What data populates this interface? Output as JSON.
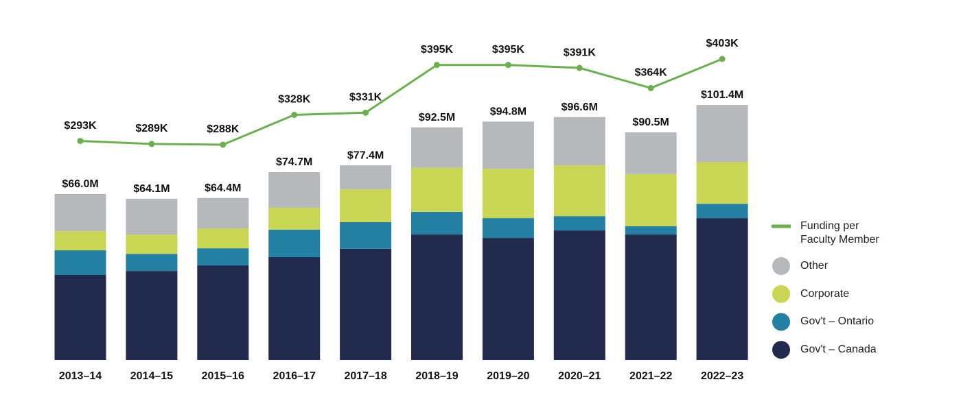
{
  "chart_data": {
    "type": "bar",
    "categories": [
      "2013–14",
      "2014–15",
      "2015–16",
      "2016–17",
      "2017–18",
      "2018–19",
      "2019–20",
      "2020–21",
      "2021–22",
      "2022–23"
    ],
    "series": [
      {
        "name": "Gov't – Canada",
        "color": "#222a4e",
        "values": [
          33.8,
          35.4,
          37.6,
          40.9,
          44.2,
          49.9,
          48.5,
          51.5,
          49.9,
          56.4
        ]
      },
      {
        "name": "Gov't – Ontario",
        "color": "#2480a3",
        "values": [
          9.8,
          6.8,
          6.8,
          10.9,
          10.6,
          9.0,
          7.9,
          5.7,
          3.3,
          5.7
        ]
      },
      {
        "name": "Corporate",
        "color": "#c9d653",
        "values": [
          7.6,
          7.6,
          7.9,
          8.7,
          13.1,
          17.5,
          19.6,
          20.2,
          20.7,
          16.6
        ]
      },
      {
        "name": "Other",
        "color": "#b6b9bc",
        "values": [
          14.8,
          14.3,
          12.1,
          14.2,
          9.5,
          16.1,
          18.8,
          19.2,
          16.6,
          22.7
        ]
      },
      {
        "name": "Funding per Faculty Member",
        "type": "line",
        "color": "#6ab04c",
        "values": [
          293,
          289,
          288,
          328,
          331,
          395,
          395,
          391,
          364,
          403
        ],
        "value_labels": [
          "$293K",
          "$289K",
          "$288K",
          "$328K",
          "$331K",
          "$395K",
          "$395K",
          "$391K",
          "$364K",
          "$403K"
        ]
      }
    ],
    "totals": {
      "values": [
        66.0,
        64.1,
        64.4,
        74.7,
        77.4,
        92.5,
        94.8,
        96.6,
        90.5,
        101.4
      ],
      "value_labels": [
        "$66.0M",
        "$64.1M",
        "$64.4M",
        "$74.7M",
        "$77.4M",
        "$92.5M",
        "$94.8M",
        "$96.6M",
        "$90.5M",
        "$101.4M"
      ]
    },
    "legend": "right"
  }
}
